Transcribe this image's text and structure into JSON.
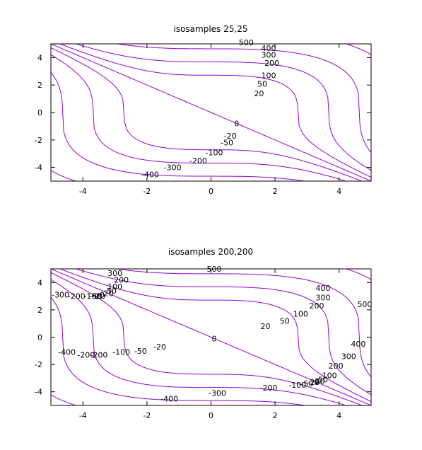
{
  "chart_data": [
    {
      "type": "contour",
      "title": "isosamples 25,25",
      "xlim": [
        -5,
        5
      ],
      "ylim": [
        -5,
        5
      ],
      "x_ticks": [
        -4,
        -2,
        0,
        2,
        4
      ],
      "y_ticks": [
        4,
        2,
        0,
        -2,
        -4
      ],
      "grid": false,
      "line_color": "#9400d3",
      "contour_labels": [
        {
          "text": "500",
          "x": 1.1,
          "y": 5.1
        },
        {
          "text": "400",
          "x": 1.8,
          "y": 4.7
        },
        {
          "text": "300",
          "x": 1.8,
          "y": 4.2
        },
        {
          "text": "200",
          "x": 1.9,
          "y": 3.6
        },
        {
          "text": "100",
          "x": 1.8,
          "y": 2.7
        },
        {
          "text": "50",
          "x": 1.6,
          "y": 2.1
        },
        {
          "text": "20",
          "x": 1.5,
          "y": 1.4
        },
        {
          "text": "0",
          "x": 0.8,
          "y": -0.8
        },
        {
          "text": "-20",
          "x": 0.6,
          "y": -1.7
        },
        {
          "text": "-50",
          "x": 0.5,
          "y": -2.2
        },
        {
          "text": "-100",
          "x": 0.1,
          "y": -2.9
        },
        {
          "text": "-200",
          "x": -0.4,
          "y": -3.5
        },
        {
          "text": "-300",
          "x": -1.2,
          "y": -4.0
        },
        {
          "text": "-400",
          "x": -1.9,
          "y": -4.5
        }
      ]
    },
    {
      "type": "contour",
      "title": "isosamples 200,200",
      "xlim": [
        -5,
        5
      ],
      "ylim": [
        -5,
        5
      ],
      "x_ticks": [
        -4,
        -2,
        0,
        2,
        4
      ],
      "y_ticks": [
        4,
        2,
        0,
        -2,
        -4
      ],
      "grid": false,
      "line_color": "#9400d3",
      "contour_labels": [
        {
          "text": "500",
          "x": 0.1,
          "y": 5.0
        },
        {
          "text": "300",
          "x": -3.0,
          "y": 4.7
        },
        {
          "text": "200",
          "x": -2.8,
          "y": 4.2
        },
        {
          "text": "100",
          "x": -3.0,
          "y": 3.7
        },
        {
          "text": "50",
          "x": -3.1,
          "y": 3.4
        },
        {
          "text": "20",
          "x": -3.2,
          "y": 3.2
        },
        {
          "text": "0",
          "x": -3.4,
          "y": 3.1
        },
        {
          "text": "-20",
          "x": -3.5,
          "y": 3.0
        },
        {
          "text": "-50",
          "x": -3.6,
          "y": 3.0
        },
        {
          "text": "-100",
          "x": -3.7,
          "y": 3.0
        },
        {
          "text": "-200",
          "x": -4.2,
          "y": 3.0
        },
        {
          "text": "-300",
          "x": -4.7,
          "y": 3.1
        },
        {
          "text": "400",
          "x": 3.5,
          "y": 3.6
        },
        {
          "text": "300",
          "x": 3.5,
          "y": 2.9
        },
        {
          "text": "200",
          "x": 3.3,
          "y": 2.3
        },
        {
          "text": "500",
          "x": 4.8,
          "y": 2.4
        },
        {
          "text": "100",
          "x": 2.8,
          "y": 1.7
        },
        {
          "text": "50",
          "x": 2.3,
          "y": 1.2
        },
        {
          "text": "20",
          "x": 1.7,
          "y": 0.8
        },
        {
          "text": "0",
          "x": 0.1,
          "y": -0.1
        },
        {
          "text": "-20",
          "x": -1.6,
          "y": -0.7
        },
        {
          "text": "-50",
          "x": -2.2,
          "y": -1.0
        },
        {
          "text": "-100",
          "x": -2.8,
          "y": -1.1
        },
        {
          "text": "-200",
          "x": -3.5,
          "y": -1.3
        },
        {
          "text": "-200",
          "x": -3.9,
          "y": -1.3
        },
        {
          "text": "-400",
          "x": -4.5,
          "y": -1.1
        },
        {
          "text": "400",
          "x": 4.6,
          "y": -0.5
        },
        {
          "text": "300",
          "x": 4.3,
          "y": -1.4
        },
        {
          "text": "200",
          "x": 3.9,
          "y": -2.1
        },
        {
          "text": "100",
          "x": 3.7,
          "y": -2.8
        },
        {
          "text": "50",
          "x": 3.5,
          "y": -3.1
        },
        {
          "text": "20",
          "x": 3.4,
          "y": -3.2
        },
        {
          "text": "0",
          "x": 3.3,
          "y": -3.3
        },
        {
          "text": "-20",
          "x": 3.2,
          "y": -3.3
        },
        {
          "text": "-50",
          "x": 3.0,
          "y": -3.4
        },
        {
          "text": "-100",
          "x": 2.7,
          "y": -3.5
        },
        {
          "text": "-200",
          "x": 1.8,
          "y": -3.7
        },
        {
          "text": "-300",
          "x": 0.2,
          "y": -4.1
        },
        {
          "text": "-400",
          "x": -1.3,
          "y": -4.5
        }
      ]
    }
  ]
}
